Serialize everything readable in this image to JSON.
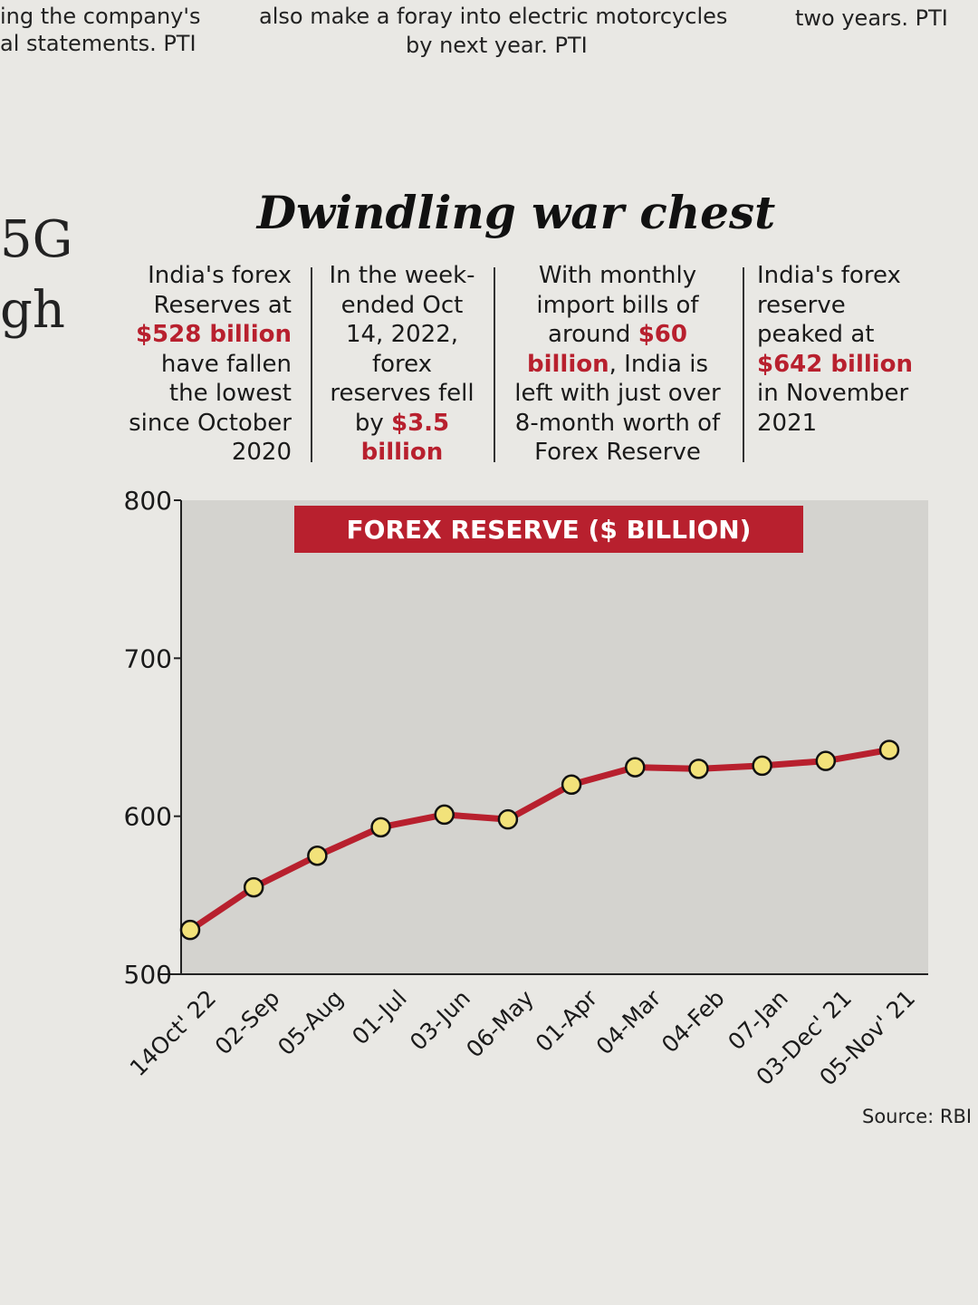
{
  "page_fragments": [
    "ing the company's",
    "al statements. PTI",
    "also make a foray into electric motorcycles",
    "by next year. PTI",
    "two years. PTI",
    "5G",
    "gh"
  ],
  "headline": "Dwindling war chest",
  "notes": [
    {
      "segments": [
        {
          "text": "India's forex Reserves at "
        },
        {
          "text": "$528 billion",
          "highlight": true
        },
        {
          "text": " have fallen the lowest since October 2020"
        }
      ]
    },
    {
      "segments": [
        {
          "text": "In the week-ended Oct 14, 2022, forex reserves fell by "
        },
        {
          "text": "$3.5 billion",
          "highlight": true
        }
      ]
    },
    {
      "segments": [
        {
          "text": "With monthly import bills of around "
        },
        {
          "text": "$60 billion",
          "highlight": true
        },
        {
          "text": ", India is left with just over 8-month worth of Forex Reserve"
        }
      ]
    },
    {
      "segments": [
        {
          "text": "India's forex reserve peaked at "
        },
        {
          "text": "$642 billion",
          "highlight": true
        },
        {
          "text": " in November 2021"
        }
      ]
    }
  ],
  "chart_data": {
    "type": "line",
    "title": "FOREX RESERVE ($ BILLION)",
    "categories": [
      "14Oct' 22",
      "02-Sep",
      "05-Aug",
      "01-Jul",
      "03-Jun",
      "06-May",
      "01-Apr",
      "04-Mar",
      "04-Feb",
      "07-Jan",
      "03-Dec' 21",
      "05-Nov' 21"
    ],
    "values": [
      528,
      555,
      575,
      593,
      601,
      598,
      620,
      631,
      630,
      632,
      635,
      642
    ],
    "color": "#b8202e",
    "marker_color": "#f2e27a",
    "ylim": [
      500,
      800
    ],
    "yticks": [
      500,
      600,
      700,
      800
    ]
  },
  "source": "Source: RBI"
}
